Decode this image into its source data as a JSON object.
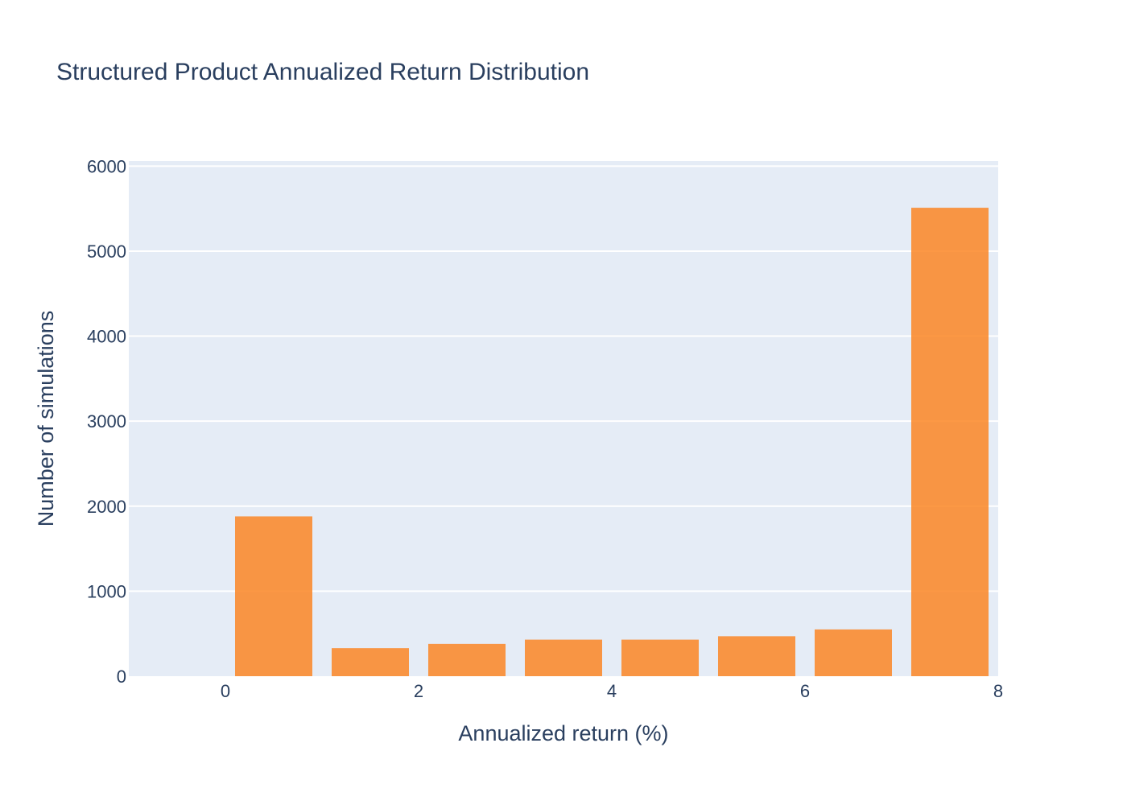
{
  "chart_data": {
    "type": "bar",
    "title": "Structured Product Annualized Return Distribution",
    "xlabel": "Annualized return (%)",
    "ylabel": "Number of simulations",
    "xlim": [
      -1,
      8
    ],
    "ylim": [
      0,
      6000
    ],
    "x_ticks": [
      0,
      2,
      4,
      6,
      8
    ],
    "y_ticks": [
      0,
      1000,
      2000,
      3000,
      4000,
      5000,
      6000
    ],
    "bins": [
      {
        "start": 0,
        "end": 1,
        "value": 1880
      },
      {
        "start": 1,
        "end": 2,
        "value": 330
      },
      {
        "start": 2,
        "end": 3,
        "value": 380
      },
      {
        "start": 3,
        "end": 4,
        "value": 430
      },
      {
        "start": 4,
        "end": 5,
        "value": 430
      },
      {
        "start": 5,
        "end": 6,
        "value": 470
      },
      {
        "start": 6,
        "end": 7,
        "value": 550
      },
      {
        "start": 7,
        "end": 8,
        "value": 5510
      }
    ],
    "bar_color": "#fb8624",
    "plot_bg": "#e5ecf6",
    "grid": true,
    "legend": "none"
  }
}
